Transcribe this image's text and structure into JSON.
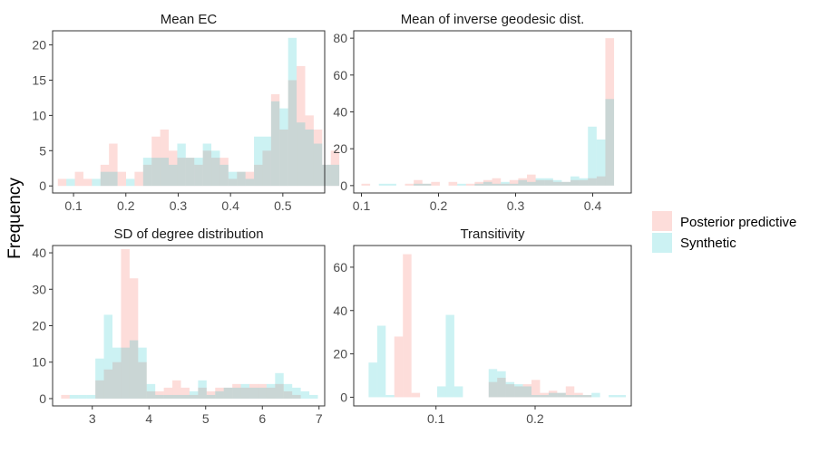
{
  "figure": {
    "ylabel": "Frequency"
  },
  "legend": [
    {
      "label": "Posterior predictive",
      "color": "#F8766D"
    },
    {
      "label": "Synthetic",
      "color": "#00BFC4"
    }
  ],
  "chart_data": [
    {
      "type": "histogram",
      "title": "Mean EC",
      "xlim": [
        0.06,
        0.58
      ],
      "ylim": [
        -1,
        22
      ],
      "xticks": [
        0.1,
        0.2,
        0.3,
        0.4,
        0.5
      ],
      "xtick_labels": [
        "0.1",
        "0.2",
        "0.3",
        "0.4",
        "0.5"
      ],
      "yticks": [
        0,
        5,
        10,
        15,
        20
      ],
      "ytick_labels": [
        "0",
        "5",
        "10",
        "15",
        "20"
      ],
      "bin_start": 0.07,
      "bin_width": 0.0163,
      "series": [
        {
          "name": "Posterior predictive",
          "values": [
            1,
            0,
            2,
            1,
            0,
            3,
            6,
            2,
            0,
            2,
            3,
            7,
            8,
            5,
            4,
            4,
            3,
            5,
            4,
            4,
            1,
            2,
            2,
            3,
            5,
            13,
            8,
            15,
            17,
            10,
            8,
            3,
            5
          ]
        },
        {
          "name": "Synthetic",
          "values": [
            0,
            1,
            0,
            0,
            1,
            2,
            2,
            0,
            1,
            0,
            4,
            4,
            4,
            3,
            6,
            4,
            4,
            6,
            5,
            3,
            2,
            2,
            1,
            7,
            7,
            12,
            11,
            21,
            9,
            8,
            6,
            3,
            3
          ]
        }
      ]
    },
    {
      "type": "histogram",
      "title": "Mean of inverse geodesic dist.",
      "xlim": [
        0.09,
        0.45
      ],
      "ylim": [
        -4,
        84
      ],
      "xticks": [
        0.1,
        0.2,
        0.3,
        0.4
      ],
      "xtick_labels": [
        "0.1",
        "0.2",
        "0.3",
        "0.4"
      ],
      "yticks": [
        0,
        20,
        40,
        60,
        80
      ],
      "ytick_labels": [
        "0",
        "20",
        "40",
        "60",
        "80"
      ],
      "bin_start": 0.1,
      "bin_width": 0.0113,
      "series": [
        {
          "name": "Posterior predictive",
          "values": [
            1,
            0,
            0,
            0,
            0,
            1,
            3,
            1,
            2,
            0,
            2,
            0,
            1,
            2,
            3,
            4,
            1,
            3,
            4,
            6,
            3,
            3,
            2,
            2,
            3,
            3,
            4,
            5,
            80
          ]
        },
        {
          "name": "Synthetic",
          "values": [
            0,
            0,
            1,
            1,
            0,
            0,
            1,
            1,
            0,
            0,
            0,
            1,
            0,
            1,
            2,
            1,
            2,
            1,
            3,
            2,
            4,
            4,
            3,
            2,
            5,
            4,
            32,
            25,
            47
          ]
        }
      ]
    },
    {
      "type": "histogram",
      "title": "SD of degree distribution",
      "xlim": [
        2.3,
        7.1
      ],
      "ylim": [
        -2,
        42
      ],
      "xticks": [
        3,
        4,
        5,
        6,
        7
      ],
      "xtick_labels": [
        "3",
        "4",
        "5",
        "6",
        "7"
      ],
      "yticks": [
        0,
        10,
        20,
        30,
        40
      ],
      "ytick_labels": [
        "0",
        "10",
        "20",
        "30",
        "40"
      ],
      "bin_start": 2.45,
      "bin_width": 0.151,
      "series": [
        {
          "name": "Posterior predictive",
          "values": [
            1,
            0,
            0,
            0,
            5,
            8,
            10,
            41,
            33,
            10,
            2,
            2,
            3,
            5,
            3,
            1,
            3,
            2,
            3,
            3,
            4,
            3,
            4,
            4,
            3,
            4,
            2,
            1,
            0,
            0
          ]
        },
        {
          "name": "Synthetic",
          "values": [
            0,
            1,
            1,
            1,
            11,
            23,
            14,
            14,
            16,
            14,
            4,
            1,
            1,
            1,
            1,
            2,
            5,
            1,
            2,
            3,
            3,
            4,
            3,
            3,
            4,
            7,
            4,
            3,
            2,
            1
          ]
        }
      ]
    },
    {
      "type": "histogram",
      "title": "Transitivity",
      "xlim": [
        0.017,
        0.297
      ],
      "ylim": [
        -4,
        70
      ],
      "xticks": [
        0.1,
        0.2
      ],
      "xtick_labels": [
        "0.1",
        "0.2"
      ],
      "yticks": [
        0,
        20,
        40,
        60
      ],
      "ytick_labels": [
        "0",
        "20",
        "40",
        "60"
      ],
      "bin_start": 0.032,
      "bin_width": 0.00865,
      "series": [
        {
          "name": "Posterior predictive",
          "values": [
            0,
            0,
            0,
            28,
            66,
            2,
            0,
            0,
            0,
            0,
            0,
            0,
            0,
            0,
            7,
            9,
            6,
            5,
            6,
            8,
            2,
            3,
            2,
            5,
            2,
            1,
            0,
            0,
            0,
            0
          ]
        },
        {
          "name": "Synthetic",
          "values": [
            16,
            33,
            1,
            0,
            0,
            0,
            0,
            0,
            5,
            38,
            5,
            0,
            0,
            0,
            13,
            12,
            7,
            6,
            5,
            1,
            1,
            2,
            2,
            1,
            1,
            1,
            2,
            0,
            1,
            1
          ]
        }
      ]
    }
  ]
}
